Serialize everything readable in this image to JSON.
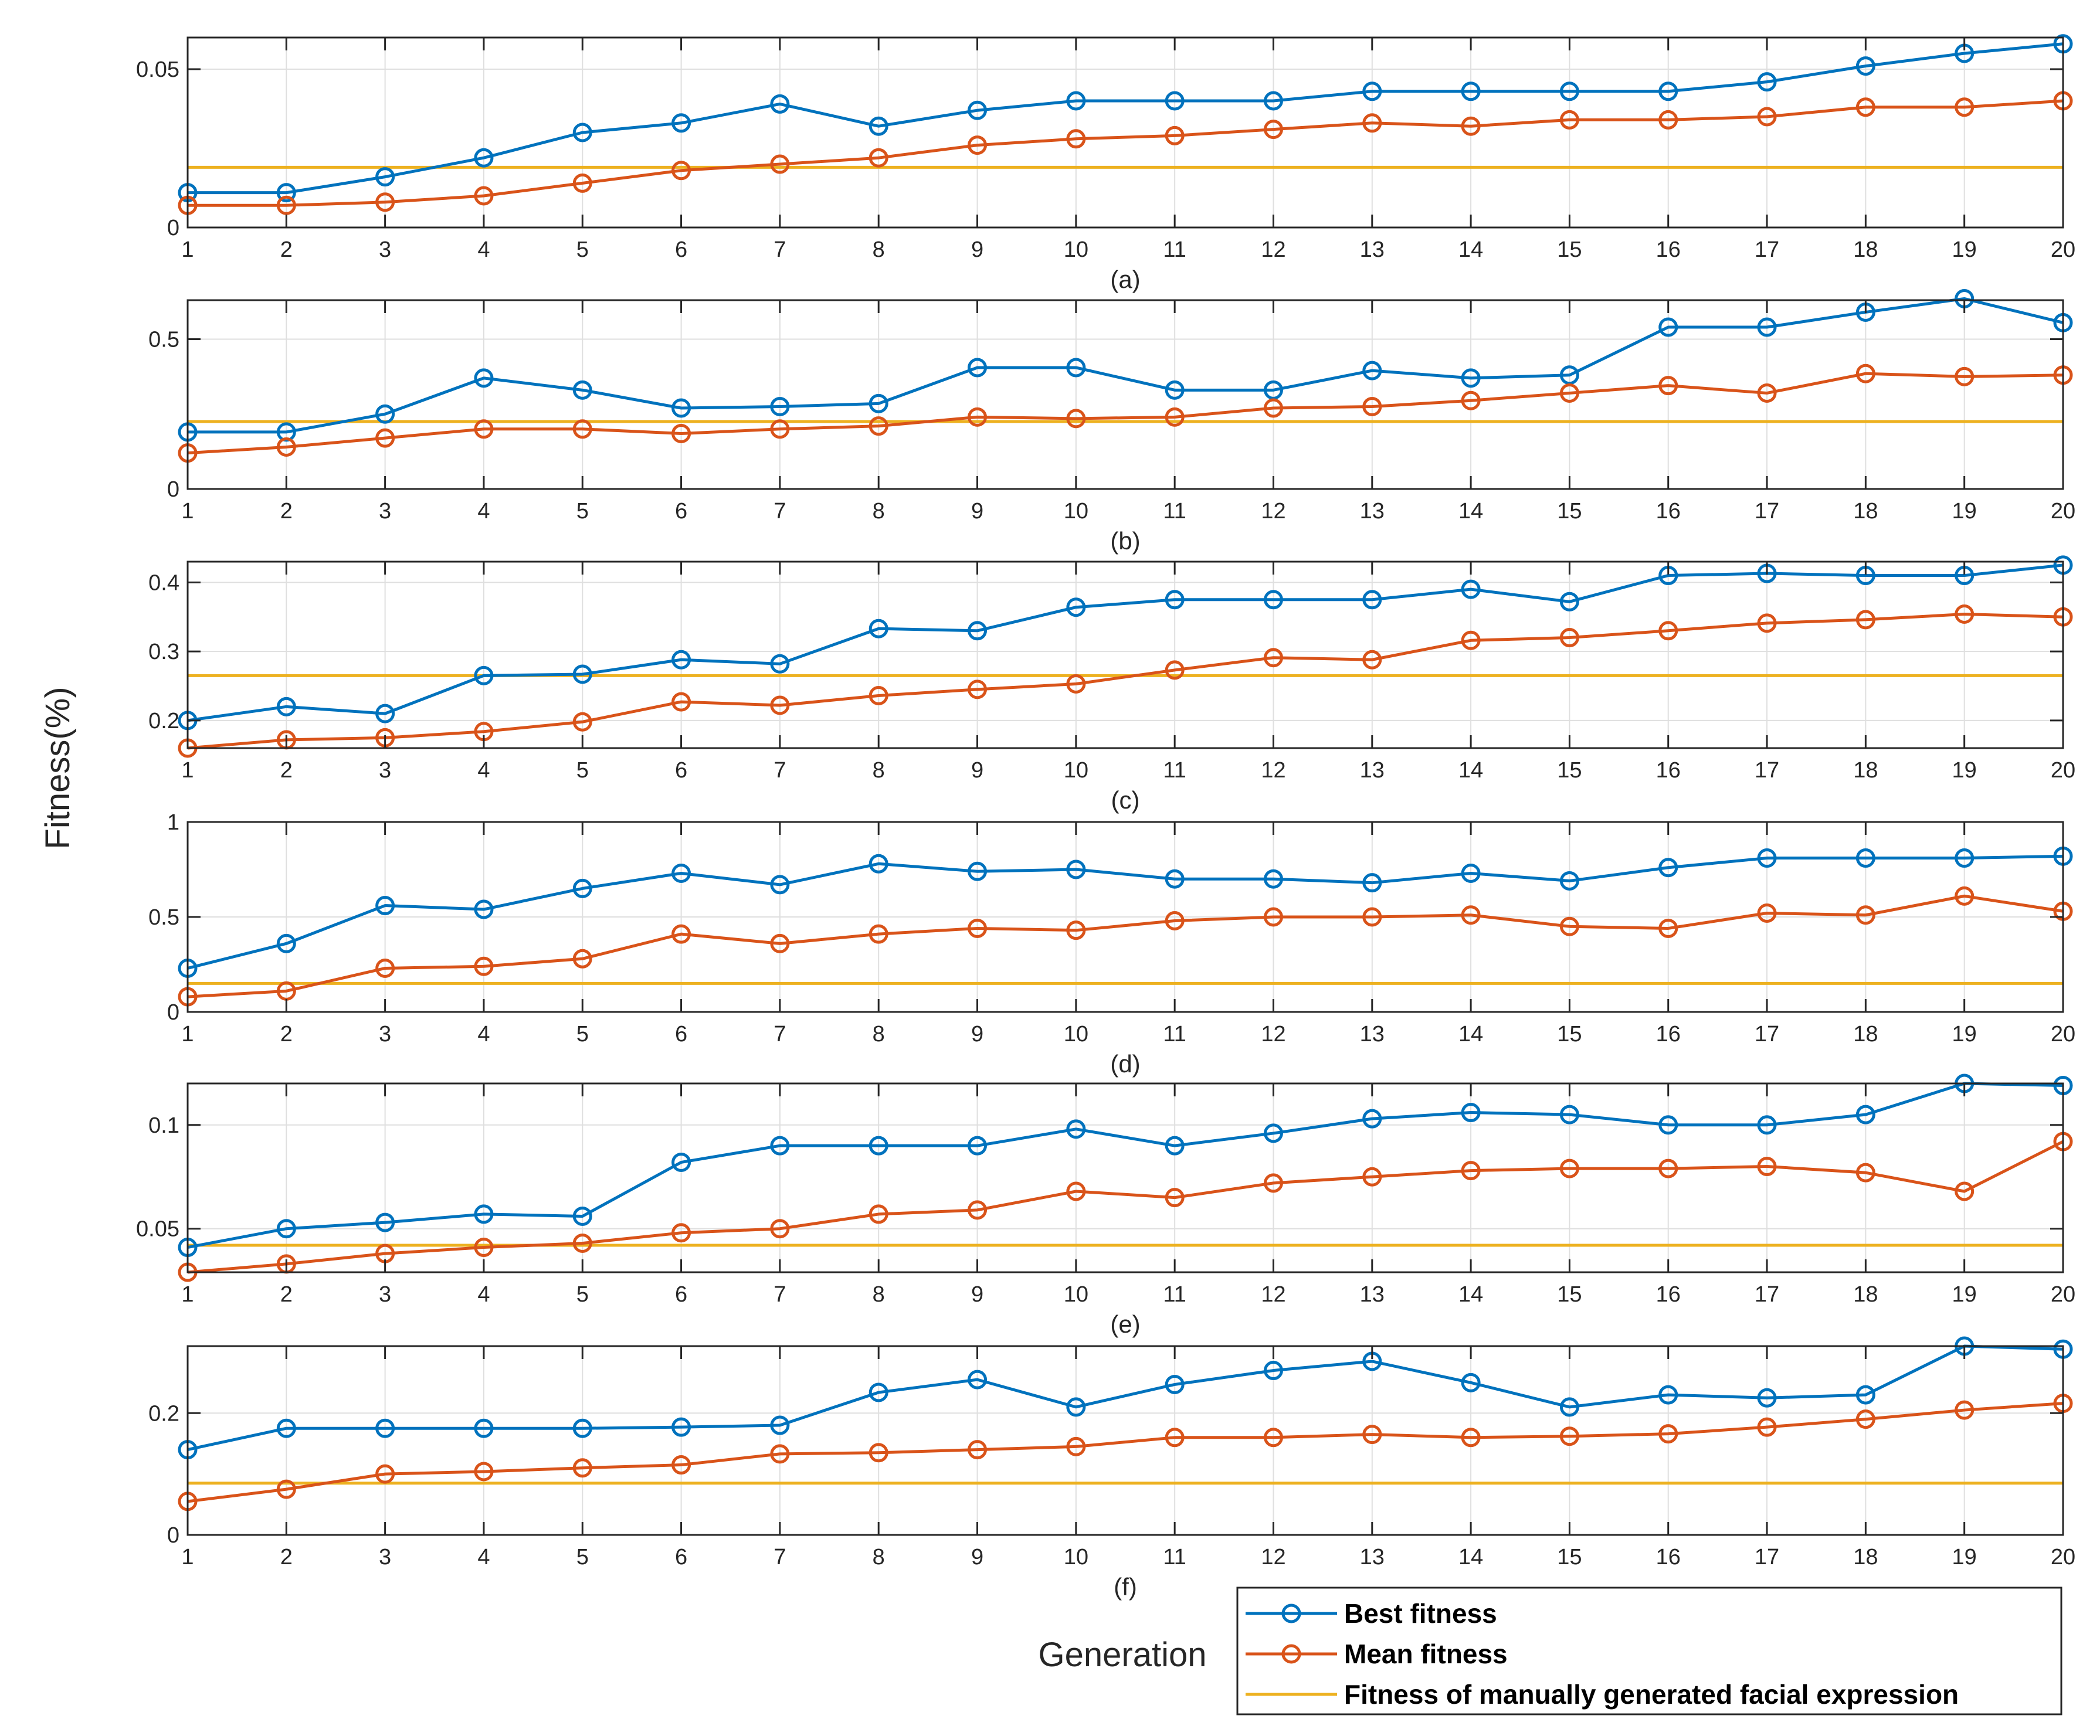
{
  "colors": {
    "best": "#0072BD",
    "mean": "#D95319",
    "manual": "#EDB120",
    "grid": "#DFDFDF",
    "axis": "#262626"
  },
  "figure": {
    "ylabel": "Fitness(%)",
    "xlabel": "Generation"
  },
  "legend": {
    "placement": "bottom-right",
    "items": [
      {
        "label": "Best fitness",
        "series": "best",
        "marker": "circle"
      },
      {
        "label": "Mean fitness",
        "series": "mean",
        "marker": "circle"
      },
      {
        "label": "Fitness of manually generated facial expression",
        "series": "manual",
        "marker": "none"
      }
    ]
  },
  "chart_data": [
    {
      "type": "line",
      "label": "(a)",
      "x": [
        1,
        2,
        3,
        4,
        5,
        6,
        7,
        8,
        9,
        10,
        11,
        12,
        13,
        14,
        15,
        16,
        17,
        18,
        19,
        20
      ],
      "xlim": [
        1,
        20
      ],
      "ylim": [
        0,
        0.06
      ],
      "yticks": [
        0,
        0.05
      ],
      "ytick_labels": [
        "0",
        "0.05"
      ],
      "grid": true,
      "series": [
        {
          "name": "Best fitness",
          "key": "best",
          "values": [
            0.011,
            0.011,
            0.016,
            0.022,
            0.03,
            0.033,
            0.039,
            0.032,
            0.037,
            0.04,
            0.04,
            0.04,
            0.043,
            0.043,
            0.043,
            0.043,
            0.046,
            0.051,
            0.055,
            0.058
          ]
        },
        {
          "name": "Mean fitness",
          "key": "mean",
          "values": [
            0.007,
            0.007,
            0.008,
            0.01,
            0.014,
            0.018,
            0.02,
            0.022,
            0.026,
            0.028,
            0.029,
            0.031,
            0.033,
            0.032,
            0.034,
            0.034,
            0.035,
            0.038,
            0.038,
            0.04
          ]
        },
        {
          "name": "Fitness of manually generated facial expression",
          "key": "manual",
          "constant": 0.019
        }
      ]
    },
    {
      "type": "line",
      "label": "(b)",
      "x": [
        1,
        2,
        3,
        4,
        5,
        6,
        7,
        8,
        9,
        10,
        11,
        12,
        13,
        14,
        15,
        16,
        17,
        18,
        19,
        20
      ],
      "xlim": [
        1,
        20
      ],
      "ylim": [
        0,
        0.63
      ],
      "yticks": [
        0,
        0.5
      ],
      "ytick_labels": [
        "0",
        "0.5"
      ],
      "grid": true,
      "series": [
        {
          "name": "Best fitness",
          "key": "best",
          "values": [
            0.19,
            0.19,
            0.25,
            0.37,
            0.33,
            0.27,
            0.275,
            0.285,
            0.405,
            0.405,
            0.33,
            0.33,
            0.395,
            0.37,
            0.38,
            0.54,
            0.54,
            0.59,
            0.635,
            0.555
          ]
        },
        {
          "name": "Mean fitness",
          "key": "mean",
          "values": [
            0.12,
            0.14,
            0.17,
            0.2,
            0.2,
            0.185,
            0.2,
            0.21,
            0.24,
            0.235,
            0.24,
            0.27,
            0.275,
            0.295,
            0.32,
            0.345,
            0.32,
            0.385,
            0.375,
            0.38
          ]
        },
        {
          "name": "Fitness of manually generated facial expression",
          "key": "manual",
          "constant": 0.225
        }
      ]
    },
    {
      "type": "line",
      "label": "(c)",
      "x": [
        1,
        2,
        3,
        4,
        5,
        6,
        7,
        8,
        9,
        10,
        11,
        12,
        13,
        14,
        15,
        16,
        17,
        18,
        19,
        20
      ],
      "xlim": [
        1,
        20
      ],
      "ylim": [
        0.16,
        0.43
      ],
      "yticks": [
        0.2,
        0.3,
        0.4
      ],
      "ytick_labels": [
        "0.2",
        "0.3",
        "0.4"
      ],
      "grid": true,
      "series": [
        {
          "name": "Best fitness",
          "key": "best",
          "values": [
            0.2,
            0.22,
            0.21,
            0.265,
            0.267,
            0.288,
            0.282,
            0.333,
            0.33,
            0.364,
            0.375,
            0.375,
            0.375,
            0.39,
            0.372,
            0.41,
            0.413,
            0.41,
            0.41,
            0.425
          ]
        },
        {
          "name": "Mean fitness",
          "key": "mean",
          "values": [
            0.16,
            0.172,
            0.175,
            0.184,
            0.198,
            0.227,
            0.222,
            0.236,
            0.245,
            0.253,
            0.273,
            0.291,
            0.288,
            0.316,
            0.32,
            0.33,
            0.341,
            0.346,
            0.354,
            0.35
          ]
        },
        {
          "name": "Fitness of manually generated facial expression",
          "key": "manual",
          "constant": 0.265
        }
      ]
    },
    {
      "type": "line",
      "label": "(d)",
      "x": [
        1,
        2,
        3,
        4,
        5,
        6,
        7,
        8,
        9,
        10,
        11,
        12,
        13,
        14,
        15,
        16,
        17,
        18,
        19,
        20
      ],
      "xlim": [
        1,
        20
      ],
      "ylim": [
        0,
        1
      ],
      "yticks": [
        0,
        0.5,
        1
      ],
      "ytick_labels": [
        "0",
        "0.5",
        "1"
      ],
      "grid": true,
      "series": [
        {
          "name": "Best fitness",
          "key": "best",
          "values": [
            0.23,
            0.36,
            0.56,
            0.54,
            0.65,
            0.73,
            0.67,
            0.78,
            0.74,
            0.75,
            0.7,
            0.7,
            0.68,
            0.73,
            0.69,
            0.76,
            0.81,
            0.81,
            0.81,
            0.82
          ]
        },
        {
          "name": "Mean fitness",
          "key": "mean",
          "values": [
            0.08,
            0.11,
            0.23,
            0.24,
            0.28,
            0.41,
            0.36,
            0.41,
            0.44,
            0.43,
            0.48,
            0.5,
            0.5,
            0.51,
            0.45,
            0.44,
            0.52,
            0.51,
            0.61,
            0.53
          ]
        },
        {
          "name": "Fitness of manually generated facial expression",
          "key": "manual",
          "constant": 0.15
        }
      ]
    },
    {
      "type": "line",
      "label": "(e)",
      "x": [
        1,
        2,
        3,
        4,
        5,
        6,
        7,
        8,
        9,
        10,
        11,
        12,
        13,
        14,
        15,
        16,
        17,
        18,
        19,
        20
      ],
      "xlim": [
        1,
        20
      ],
      "ylim": [
        0.029,
        0.12
      ],
      "yticks": [
        0.05,
        0.1
      ],
      "ytick_labels": [
        "0.05",
        "0.1"
      ],
      "grid": true,
      "series": [
        {
          "name": "Best fitness",
          "key": "best",
          "values": [
            0.041,
            0.05,
            0.053,
            0.057,
            0.056,
            0.082,
            0.09,
            0.09,
            0.09,
            0.098,
            0.09,
            0.096,
            0.103,
            0.106,
            0.105,
            0.1,
            0.1,
            0.105,
            0.12,
            0.119
          ]
        },
        {
          "name": "Mean fitness",
          "key": "mean",
          "values": [
            0.029,
            0.033,
            0.038,
            0.041,
            0.043,
            0.048,
            0.05,
            0.057,
            0.059,
            0.068,
            0.065,
            0.072,
            0.075,
            0.078,
            0.079,
            0.079,
            0.08,
            0.077,
            0.068,
            0.092
          ]
        },
        {
          "name": "Fitness of manually generated facial expression",
          "key": "manual",
          "constant": 0.042
        }
      ]
    },
    {
      "type": "line",
      "label": "(f)",
      "x": [
        1,
        2,
        3,
        4,
        5,
        6,
        7,
        8,
        9,
        10,
        11,
        12,
        13,
        14,
        15,
        16,
        17,
        18,
        19,
        20
      ],
      "xlim": [
        1,
        20
      ],
      "ylim": [
        0,
        0.31
      ],
      "yticks": [
        0,
        0.2
      ],
      "ytick_labels": [
        "0",
        "0.2"
      ],
      "grid": true,
      "series": [
        {
          "name": "Best fitness",
          "key": "best",
          "values": [
            0.14,
            0.175,
            0.175,
            0.175,
            0.175,
            0.177,
            0.18,
            0.234,
            0.255,
            0.21,
            0.247,
            0.27,
            0.285,
            0.25,
            0.21,
            0.23,
            0.225,
            0.23,
            0.31,
            0.305
          ]
        },
        {
          "name": "Mean fitness",
          "key": "mean",
          "values": [
            0.055,
            0.075,
            0.1,
            0.104,
            0.11,
            0.115,
            0.133,
            0.135,
            0.14,
            0.145,
            0.16,
            0.16,
            0.165,
            0.16,
            0.162,
            0.166,
            0.177,
            0.19,
            0.205,
            0.216
          ]
        },
        {
          "name": "Fitness of manually generated facial expression",
          "key": "manual",
          "constant": 0.085
        }
      ]
    }
  ]
}
